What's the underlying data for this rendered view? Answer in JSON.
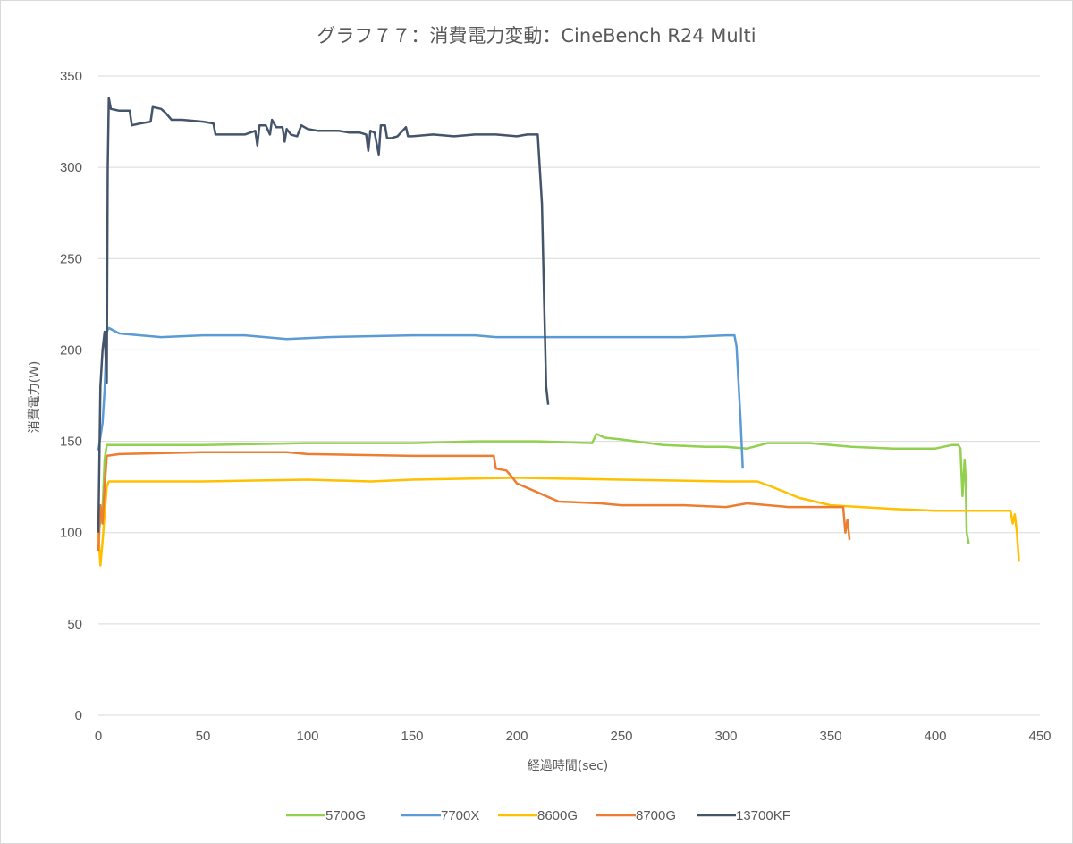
{
  "chart_data": {
    "type": "line",
    "title": "グラフ７７：消費電力変動：CineBench R24 Multi",
    "xlabel": "経過時間(sec)",
    "ylabel": "消費電力(W)",
    "xlim": [
      0,
      450
    ],
    "ylim": [
      0,
      350
    ],
    "xticks": [
      0,
      50,
      100,
      150,
      200,
      250,
      300,
      350,
      400,
      450
    ],
    "yticks": [
      0,
      50,
      100,
      150,
      200,
      250,
      300,
      350
    ],
    "grid": "horizontal",
    "legend_position": "bottom",
    "series": [
      {
        "name": "5700G",
        "color": "#92d050",
        "points": [
          [
            0,
            100
          ],
          [
            2,
            112
          ],
          [
            3,
            140
          ],
          [
            4,
            148
          ],
          [
            5,
            148
          ],
          [
            50,
            148
          ],
          [
            100,
            149
          ],
          [
            150,
            149
          ],
          [
            180,
            150
          ],
          [
            210,
            150
          ],
          [
            236,
            149
          ],
          [
            238,
            154
          ],
          [
            242,
            152
          ],
          [
            250,
            151
          ],
          [
            270,
            148
          ],
          [
            290,
            147
          ],
          [
            300,
            147
          ],
          [
            310,
            146
          ],
          [
            320,
            149
          ],
          [
            340,
            149
          ],
          [
            360,
            147
          ],
          [
            380,
            146
          ],
          [
            400,
            146
          ],
          [
            408,
            148
          ],
          [
            411,
            148
          ],
          [
            412,
            146
          ],
          [
            413,
            120
          ],
          [
            414,
            140
          ],
          [
            414.5,
            130
          ],
          [
            415,
            100
          ],
          [
            416,
            94
          ]
        ]
      },
      {
        "name": "7700X",
        "color": "#5b9bd5",
        "points": [
          [
            0,
            145
          ],
          [
            2,
            160
          ],
          [
            3,
            178
          ],
          [
            4,
            210
          ],
          [
            5,
            212
          ],
          [
            10,
            209
          ],
          [
            20,
            208
          ],
          [
            30,
            207
          ],
          [
            50,
            208
          ],
          [
            70,
            208
          ],
          [
            90,
            206
          ],
          [
            110,
            207
          ],
          [
            150,
            208
          ],
          [
            180,
            208
          ],
          [
            190,
            207
          ],
          [
            220,
            207
          ],
          [
            240,
            207
          ],
          [
            260,
            207
          ],
          [
            280,
            207
          ],
          [
            300,
            208
          ],
          [
            304,
            208
          ],
          [
            305,
            202
          ],
          [
            307,
            160
          ],
          [
            308,
            135
          ]
        ]
      },
      {
        "name": "8600G",
        "color": "#ffc000",
        "points": [
          [
            0,
            100
          ],
          [
            1,
            82
          ],
          [
            2,
            95
          ],
          [
            3,
            110
          ],
          [
            4,
            125
          ],
          [
            5,
            128
          ],
          [
            50,
            128
          ],
          [
            100,
            129
          ],
          [
            130,
            128
          ],
          [
            150,
            129
          ],
          [
            200,
            130
          ],
          [
            250,
            129
          ],
          [
            300,
            128
          ],
          [
            315,
            128
          ],
          [
            322,
            125
          ],
          [
            335,
            119
          ],
          [
            350,
            115
          ],
          [
            380,
            113
          ],
          [
            400,
            112
          ],
          [
            420,
            112
          ],
          [
            436,
            112
          ],
          [
            437,
            105
          ],
          [
            438,
            110
          ],
          [
            439,
            100
          ],
          [
            440,
            84
          ]
        ]
      },
      {
        "name": "8700G",
        "color": "#ed7d31",
        "points": [
          [
            0,
            90
          ],
          [
            1,
            115
          ],
          [
            2,
            105
          ],
          [
            3,
            125
          ],
          [
            4,
            142
          ],
          [
            10,
            143
          ],
          [
            50,
            144
          ],
          [
            90,
            144
          ],
          [
            100,
            143
          ],
          [
            150,
            142
          ],
          [
            189,
            142
          ],
          [
            190,
            135
          ],
          [
            195,
            134
          ],
          [
            198,
            130
          ],
          [
            200,
            127
          ],
          [
            210,
            122
          ],
          [
            220,
            117
          ],
          [
            240,
            116
          ],
          [
            250,
            115
          ],
          [
            280,
            115
          ],
          [
            300,
            114
          ],
          [
            310,
            116
          ],
          [
            330,
            114
          ],
          [
            350,
            114
          ],
          [
            356,
            114
          ],
          [
            357,
            100
          ],
          [
            358,
            107
          ],
          [
            359,
            96
          ]
        ]
      },
      {
        "name": "13700KF",
        "color": "#44546a",
        "points": [
          [
            0,
            100
          ],
          [
            1,
            180
          ],
          [
            2,
            200
          ],
          [
            3,
            210
          ],
          [
            4,
            182
          ],
          [
            4.5,
            300
          ],
          [
            5,
            338
          ],
          [
            6,
            332
          ],
          [
            10,
            331
          ],
          [
            15,
            331
          ],
          [
            16,
            323
          ],
          [
            20,
            324
          ],
          [
            25,
            325
          ],
          [
            26,
            333
          ],
          [
            30,
            332
          ],
          [
            32,
            330
          ],
          [
            35,
            326
          ],
          [
            40,
            326
          ],
          [
            50,
            325
          ],
          [
            55,
            324
          ],
          [
            56,
            318
          ],
          [
            60,
            318
          ],
          [
            70,
            318
          ],
          [
            75,
            320
          ],
          [
            76,
            312
          ],
          [
            77,
            323
          ],
          [
            80,
            323
          ],
          [
            82,
            318
          ],
          [
            83,
            326
          ],
          [
            85,
            322
          ],
          [
            88,
            322
          ],
          [
            89,
            314
          ],
          [
            90,
            321
          ],
          [
            92,
            318
          ],
          [
            95,
            317
          ],
          [
            97,
            323
          ],
          [
            100,
            321
          ],
          [
            105,
            320
          ],
          [
            110,
            320
          ],
          [
            115,
            320
          ],
          [
            120,
            319
          ],
          [
            125,
            319
          ],
          [
            128,
            318
          ],
          [
            129,
            309
          ],
          [
            130,
            320
          ],
          [
            132,
            319
          ],
          [
            134,
            307
          ],
          [
            135,
            323
          ],
          [
            137,
            323
          ],
          [
            138,
            316
          ],
          [
            140,
            316
          ],
          [
            143,
            317
          ],
          [
            147,
            322
          ],
          [
            148,
            317
          ],
          [
            150,
            317
          ],
          [
            160,
            318
          ],
          [
            170,
            317
          ],
          [
            180,
            318
          ],
          [
            190,
            318
          ],
          [
            200,
            317
          ],
          [
            205,
            318
          ],
          [
            210,
            318
          ],
          [
            212,
            280
          ],
          [
            213,
            230
          ],
          [
            214,
            180
          ],
          [
            215,
            170
          ]
        ]
      }
    ]
  }
}
